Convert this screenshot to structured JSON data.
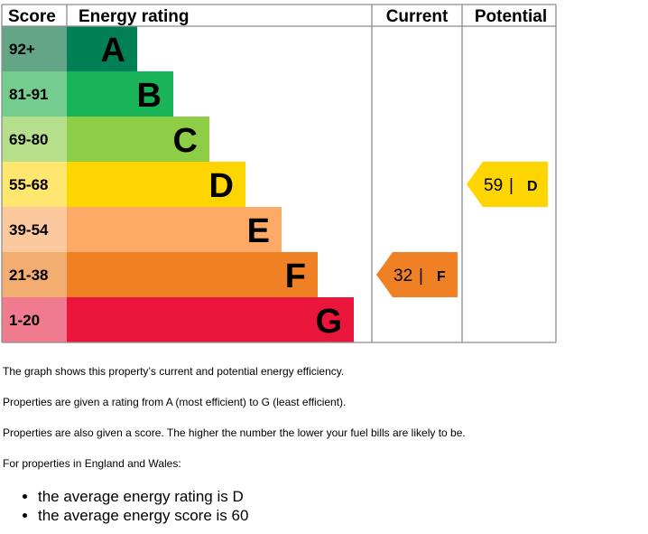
{
  "chart_data": {
    "type": "bar",
    "headers": {
      "score": "Score",
      "energy_rating": "Energy rating",
      "current": "Current",
      "potential": "Potential"
    },
    "bands": [
      {
        "score": "92+",
        "letter": "A",
        "color": "#008054",
        "score_color": "#64a588"
      },
      {
        "score": "81-91",
        "letter": "B",
        "color": "#19b459",
        "score_color": "#75cc8f"
      },
      {
        "score": "69-80",
        "letter": "C",
        "color": "#8dce46",
        "score_color": "#b5df8b"
      },
      {
        "score": "55-68",
        "letter": "D",
        "color": "#ffd500",
        "score_color": "#ffe66f"
      },
      {
        "score": "39-54",
        "letter": "E",
        "color": "#fcaa65",
        "score_color": "#fcc99e"
      },
      {
        "score": "21-38",
        "letter": "F",
        "color": "#ef8023",
        "score_color": "#f4ad71"
      },
      {
        "score": "1-20",
        "letter": "G",
        "color": "#e9153b",
        "score_color": "#f07b8e"
      }
    ],
    "current": {
      "score": "32",
      "letter": "F",
      "color": "#ef8023"
    },
    "potential": {
      "score": "59",
      "letter": "D",
      "color": "#ffd500"
    },
    "separator": "|"
  },
  "text": {
    "line1": "The graph shows this property’s current and potential energy efficiency.",
    "line2": "Properties are given a rating from A (most efficient) to G (least efficient).",
    "line3": "Properties are also given a score. The higher the number the lower your fuel bills are likely to be.",
    "line4": "For properties in England and Wales:",
    "bullets": [
      "the average energy rating is D",
      "the average energy score is 60"
    ]
  }
}
